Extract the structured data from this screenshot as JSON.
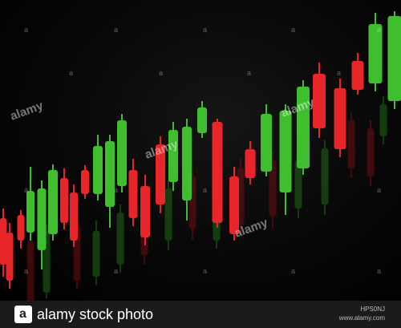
{
  "watermark": {
    "text": "alamy",
    "mark": "a"
  },
  "footer": {
    "brand_text": "alamy stock photo",
    "logo_letter": "a",
    "image_id": "HPS0NJ",
    "site": "www.alamy.com"
  },
  "colors": {
    "bull": "#3fbf2e",
    "bull_dark": "#1f6a14",
    "bear": "#e8262a",
    "bear_dark": "#6d0f12",
    "background": "#000000",
    "footer_bg": "#1b1b1b"
  }
}
